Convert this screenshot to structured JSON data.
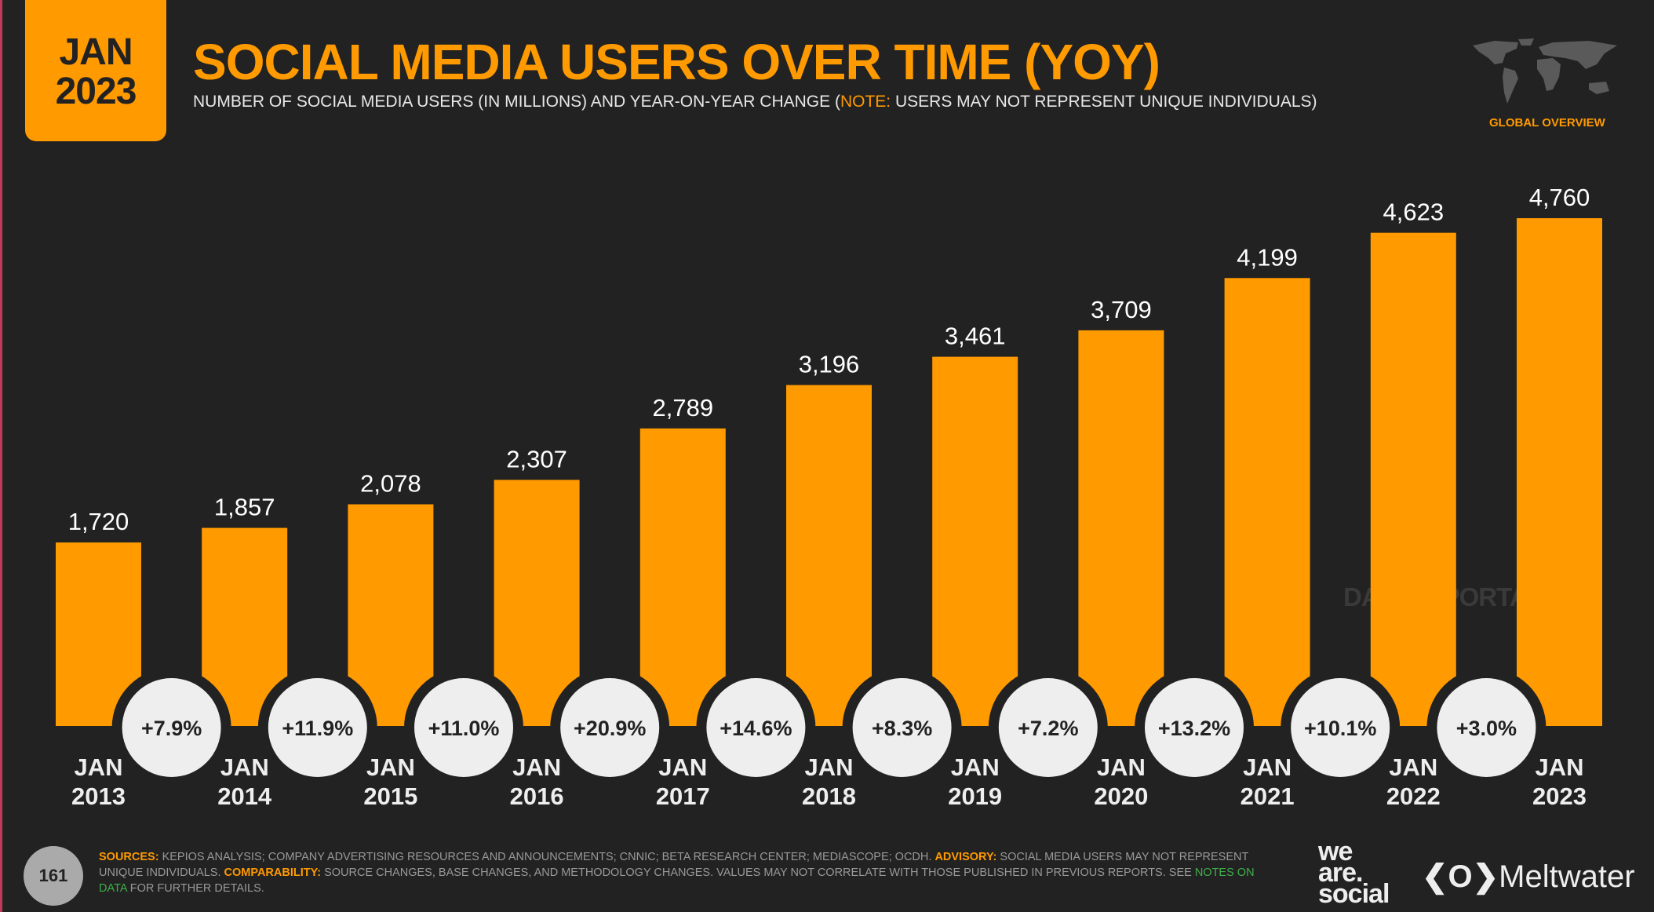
{
  "header": {
    "date_month": "JAN",
    "date_year": "2023",
    "title": "SOCIAL MEDIA USERS OVER TIME (YOY)",
    "subtitle_main": "NUMBER OF SOCIAL MEDIA USERS (IN MILLIONS) AND YEAR-ON-YEAR CHANGE (",
    "subtitle_note_label": "NOTE:",
    "subtitle_note": " USERS MAY NOT REPRESENT UNIQUE INDIVIDUALS)",
    "section_label": "GLOBAL OVERVIEW",
    "map_icon": "world-map-icon"
  },
  "chart_data": {
    "type": "bar",
    "categories": [
      [
        "JAN",
        "2013"
      ],
      [
        "JAN",
        "2014"
      ],
      [
        "JAN",
        "2015"
      ],
      [
        "JAN",
        "2016"
      ],
      [
        "JAN",
        "2017"
      ],
      [
        "JAN",
        "2018"
      ],
      [
        "JAN",
        "2019"
      ],
      [
        "JAN",
        "2020"
      ],
      [
        "JAN",
        "2021"
      ],
      [
        "JAN",
        "2022"
      ],
      [
        "JAN",
        "2023"
      ]
    ],
    "values": [
      1720,
      1857,
      2078,
      2307,
      2789,
      3196,
      3461,
      3709,
      4199,
      4623,
      4760
    ],
    "value_labels": [
      "1,720",
      "1,857",
      "2,078",
      "2,307",
      "2,789",
      "3,196",
      "3,461",
      "3,709",
      "4,199",
      "4,623",
      "4,760"
    ],
    "yoy_change": [
      "+7.9%",
      "+11.9%",
      "+11.0%",
      "+20.9%",
      "+14.6%",
      "+8.3%",
      "+7.2%",
      "+13.2%",
      "+10.1%",
      "+3.0%"
    ],
    "ylim": [
      0,
      4760
    ],
    "grid": false,
    "colors": {
      "bar": "#ff9a00",
      "change_bubble": "#eeeeee",
      "background": "#222222"
    }
  },
  "watermark": "DATAREPORTAL",
  "footer": {
    "page_number": "161",
    "sources_label": "SOURCES:",
    "sources": " KEPIOS ANALYSIS; COMPANY ADVERTISING RESOURCES AND ANNOUNCEMENTS; CNNIC; BETA RESEARCH CENTER; MEDIASCOPE; OCDH. ",
    "advisory_label": "ADVISORY:",
    "advisory": " SOCIAL MEDIA USERS MAY NOT REPRESENT UNIQUE INDIVIDUALS. ",
    "comparability_label": "COMPARABILITY:",
    "comparability": " SOURCE CHANGES, BASE CHANGES, AND METHODOLOGY CHANGES. VALUES MAY NOT CORRELATE WITH THOSE PUBLISHED IN PREVIOUS REPORTS. SEE ",
    "link": "NOTES ON DATA",
    "tail": " FOR FURTHER DETAILS.",
    "logo_wearesocial": "we are. social",
    "logo_meltwater": "Meltwater"
  }
}
